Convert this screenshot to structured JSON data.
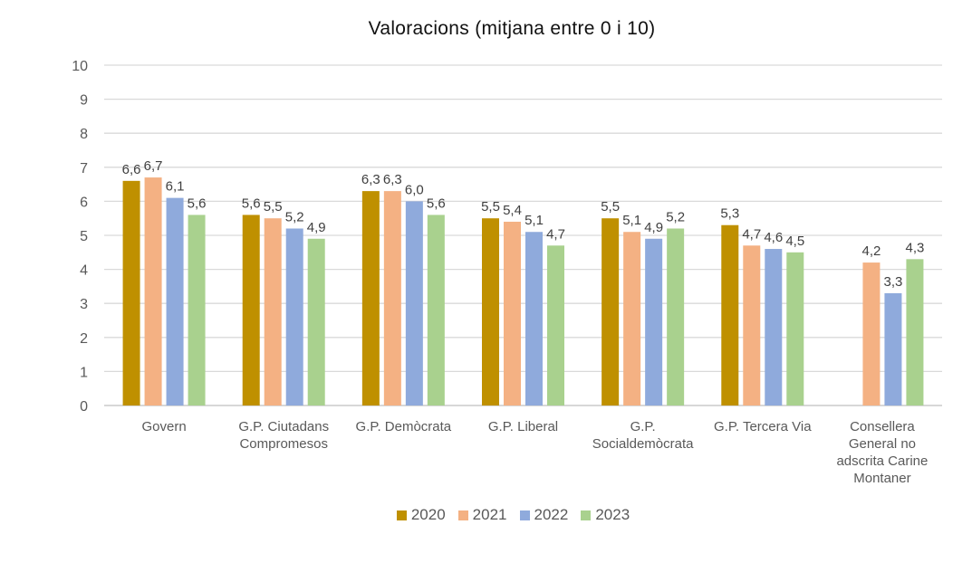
{
  "chart_data": {
    "type": "bar",
    "title": "Valoracions (mitjana entre 0 i 10)",
    "xlabel": "",
    "ylabel": "",
    "ylim": [
      0,
      10
    ],
    "yticks": [
      "0",
      "1",
      "2",
      "3",
      "4",
      "5",
      "6",
      "7",
      "8",
      "9",
      "10"
    ],
    "grid": true,
    "legend_position": "bottom",
    "categories": [
      [
        "Govern"
      ],
      [
        "G.P. Ciutadans",
        "Compromesos"
      ],
      [
        "G.P. Demòcrata"
      ],
      [
        "G.P. Liberal"
      ],
      [
        "G.P.",
        "Socialdemòcrata"
      ],
      [
        "G.P. Tercera Via"
      ],
      [
        "Consellera",
        "General no",
        "adscrita Carine",
        "Montaner"
      ]
    ],
    "series": [
      {
        "name": "2020",
        "color": "#BF9000",
        "values": [
          6.6,
          5.6,
          6.3,
          5.5,
          5.5,
          5.3,
          null
        ],
        "labels": [
          "6,6",
          "5,6",
          "6,3",
          "5,5",
          "5,5",
          "5,3",
          ""
        ]
      },
      {
        "name": "2021",
        "color": "#F4B183",
        "values": [
          6.7,
          5.5,
          6.3,
          5.4,
          5.1,
          4.7,
          4.2
        ],
        "labels": [
          "6,7",
          "5,5",
          "6,3",
          "5,4",
          "5,1",
          "4,7",
          "4,2"
        ]
      },
      {
        "name": "2022",
        "color": "#8FAADC",
        "values": [
          6.1,
          5.2,
          6.0,
          5.1,
          4.9,
          4.6,
          3.3
        ],
        "labels": [
          "6,1",
          "5,2",
          "6,0",
          "5,1",
          "4,9",
          "4,6",
          "3,3"
        ]
      },
      {
        "name": "2023",
        "color": "#A9D18E",
        "values": [
          5.6,
          4.9,
          5.6,
          4.7,
          5.2,
          4.5,
          4.3
        ],
        "labels": [
          "5,6",
          "4,9",
          "5,6",
          "4,7",
          "5,2",
          "4,5",
          "4,3"
        ]
      }
    ]
  }
}
